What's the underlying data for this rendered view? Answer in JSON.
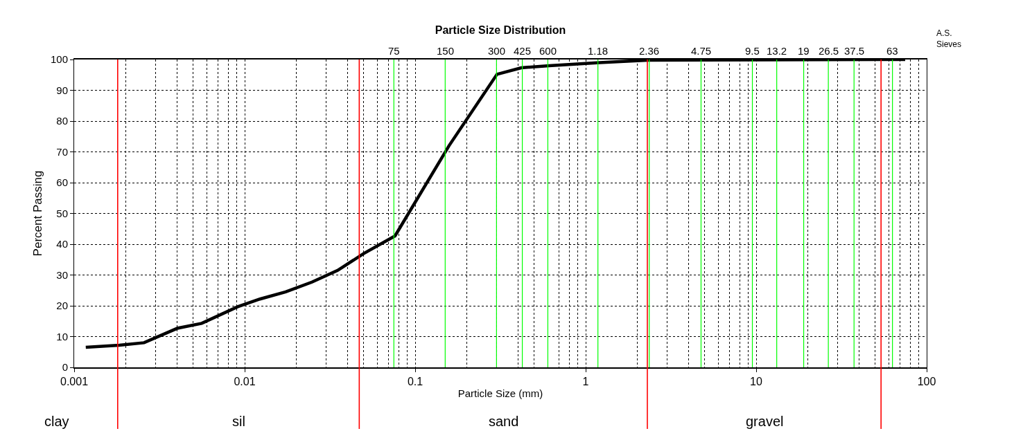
{
  "chart_data": {
    "type": "line",
    "title": "Particle Size Distribution",
    "xlabel": "Particle Size (mm)",
    "ylabel": "Percent Passing",
    "log": "x",
    "xlim": [
      0.001,
      100
    ],
    "xticks": [
      0.001,
      0.01,
      0.1,
      1,
      10,
      100
    ],
    "ylim": [
      0,
      100
    ],
    "yticks": [
      0,
      10,
      20,
      30,
      40,
      50,
      60,
      70,
      80,
      90,
      100
    ],
    "grid": true,
    "marker": "none",
    "line_style": "solid",
    "x": [
      0.00117,
      0.00184,
      0.00257,
      0.00403,
      0.0056,
      0.0091,
      0.0123,
      0.0174,
      0.0248,
      0.0351,
      0.05,
      0.0762,
      0.158,
      0.302,
      0.419,
      0.61,
      1.21,
      2.32,
      74.8
    ],
    "series": [
      {
        "color": "#000000",
        "values": [
          6.5,
          7.2,
          8.0,
          12.7,
          14.3,
          19.7,
          22.2,
          24.5,
          27.7,
          31.5,
          37,
          42.7,
          72,
          95.2,
          97.3,
          98,
          99,
          99.8,
          100
        ]
      }
    ],
    "ref_lines": [
      {
        "axis": "x",
        "value": 0.0018,
        "color": "#ff0000"
      },
      {
        "axis": "x",
        "value": 0.047,
        "color": "#ff0000"
      },
      {
        "axis": "x",
        "value": 2.3,
        "color": "#ff0000"
      },
      {
        "axis": "x",
        "value": 54,
        "color": "#ff0000"
      },
      {
        "axis": "x",
        "value": 0.075,
        "label": "75",
        "color": "#00ff00"
      },
      {
        "axis": "x",
        "value": 0.15,
        "label": "150",
        "color": "#00ff00"
      },
      {
        "axis": "x",
        "value": 0.3,
        "label": "300",
        "color": "#00ff00"
      },
      {
        "axis": "x",
        "value": 0.425,
        "label": "425",
        "color": "#00ff00"
      },
      {
        "axis": "x",
        "value": 0.6,
        "label": "600",
        "color": "#00ff00"
      },
      {
        "axis": "x",
        "value": 1.18,
        "label": "1.18",
        "color": "#00ff00"
      },
      {
        "axis": "x",
        "value": 2.36,
        "label": "2.36",
        "color": "#00ff00"
      },
      {
        "axis": "x",
        "value": 4.75,
        "label": "4.75",
        "color": "#00ff00"
      },
      {
        "axis": "x",
        "value": 9.5,
        "label": "9.5",
        "color": "#00ff00"
      },
      {
        "axis": "x",
        "value": 13.2,
        "label": "13.2",
        "color": "#00ff00"
      },
      {
        "axis": "x",
        "value": 19,
        "label": "19",
        "color": "#00ff00"
      },
      {
        "axis": "x",
        "value": 26.5,
        "label": "26.5",
        "color": "#00ff00"
      },
      {
        "axis": "x",
        "value": 37.5,
        "label": "37.5",
        "color": "#00ff00"
      },
      {
        "axis": "x",
        "value": 63,
        "label": "63",
        "color": "#00ff00"
      }
    ],
    "annotations": [
      "clay",
      "sil",
      "sand",
      "gravel",
      "A.S. Sieves"
    ]
  }
}
